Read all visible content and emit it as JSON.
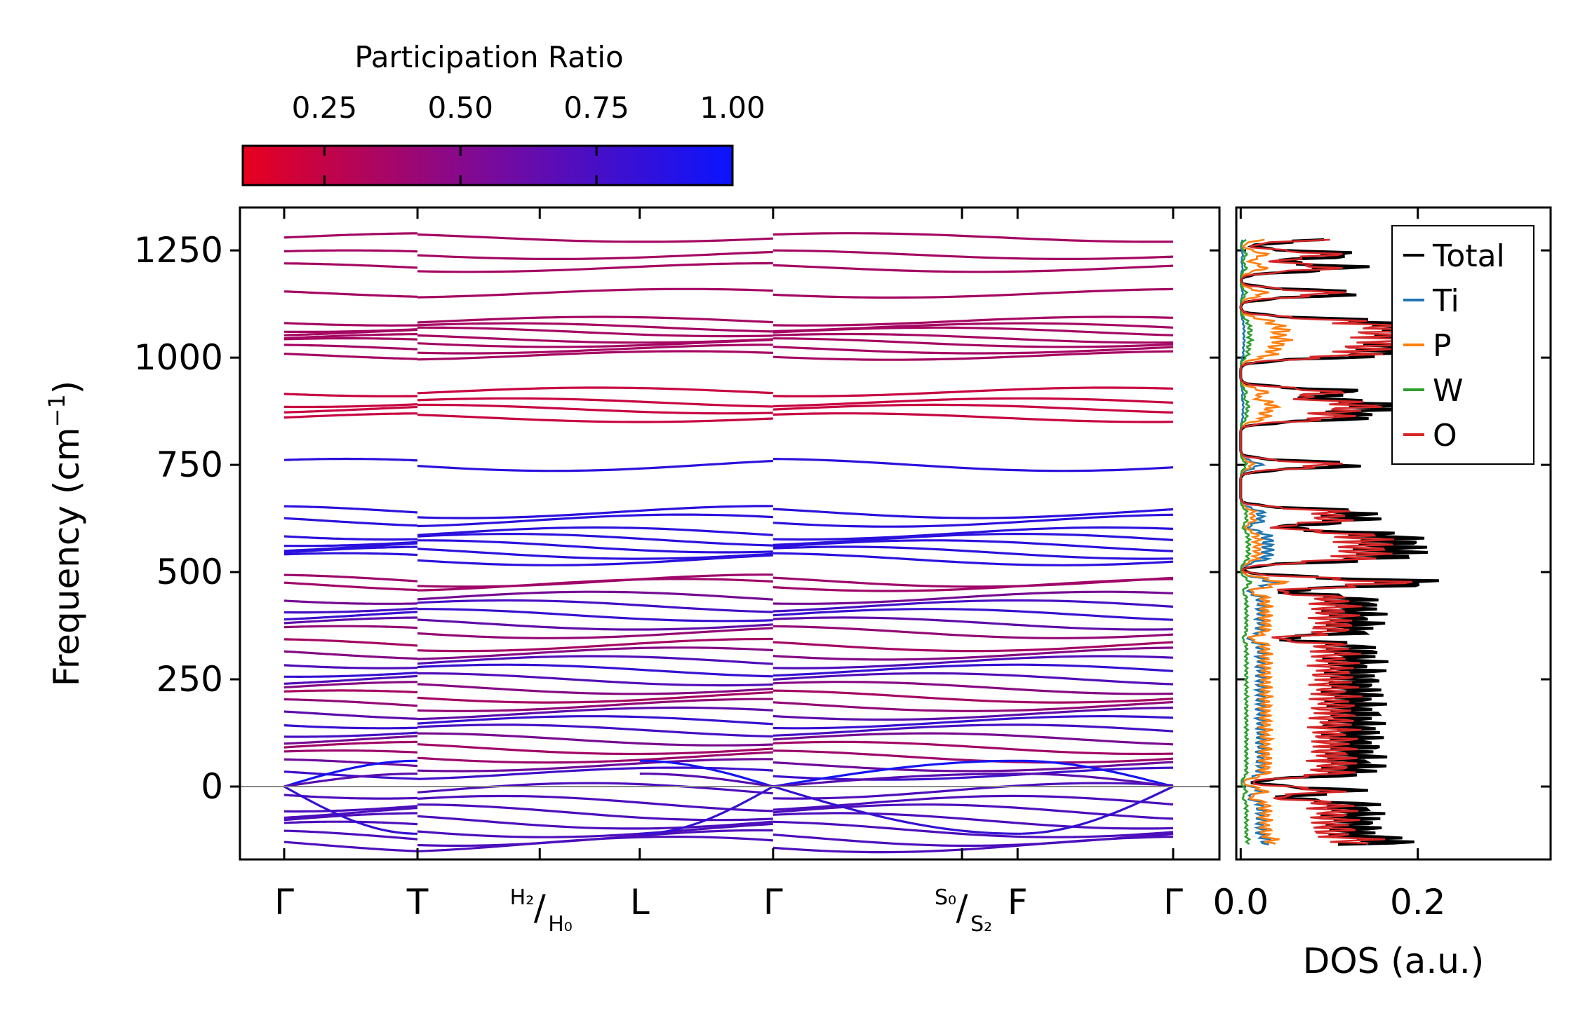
{
  "chart_data": [
    {
      "type": "line",
      "name": "phonon-band-structure",
      "ylabel": "Frequency (cm",
      "ylabel_sup": "−1",
      "ylabel_close": ")",
      "ylim": [
        -170,
        1350
      ],
      "yticks": [
        0,
        250,
        500,
        750,
        1000,
        1250
      ],
      "ytick_labels": [
        "0",
        "250",
        "500",
        "750",
        "1000",
        "1250"
      ],
      "path_segments": [
        [
          0,
          0.6
        ],
        [
          0.6,
          2.2
        ],
        [
          2.2,
          4.0
        ]
      ],
      "hsym_points": [
        {
          "pos": 0.0,
          "label": "Γ"
        },
        {
          "pos": 0.6,
          "label": "T"
        },
        {
          "pos": 1.15,
          "label": "/",
          "pre_sup": "H₂",
          "post_sub": "H₀"
        },
        {
          "pos": 1.6,
          "label": "L"
        },
        {
          "pos": 2.2,
          "label": "Γ"
        },
        {
          "pos": 3.05,
          "label": "/",
          "pre_sup": "S₀",
          "post_sub": "S₂"
        },
        {
          "pos": 3.3,
          "label": "F"
        },
        {
          "pos": 4.0,
          "label": "Γ"
        }
      ],
      "band_levels": [
        1280,
        1240,
        1210,
        1150,
        1085,
        1070,
        1060,
        1045,
        1035,
        1020,
        1005,
        920,
        895,
        880,
        860,
        750,
        640,
        620,
        590,
        575,
        560,
        545,
        530,
        480,
        470,
        440,
        420,
        400,
        380,
        360,
        330,
        310,
        290,
        270,
        250,
        230,
        210,
        190,
        170,
        150,
        130,
        110,
        90,
        70,
        50,
        30,
        -10,
        -40,
        -60,
        -80,
        -100,
        -120,
        -135
      ],
      "colorbar": {
        "title": "Participation Ratio",
        "ticks": [
          0.25,
          0.5,
          0.75,
          1.0
        ],
        "tick_labels": [
          "0.25",
          "0.50",
          "0.75",
          "1.00"
        ],
        "range": [
          0.1,
          1.0
        ],
        "color_low": "#e8001e",
        "color_high": "#0a14ff"
      }
    },
    {
      "type": "line",
      "name": "phonon-dos",
      "xlabel": "DOS (a.u.)",
      "xlim": [
        -0.005,
        0.35
      ],
      "xticks": [
        0.0,
        0.2
      ],
      "xtick_labels": [
        "0.0",
        "0.2"
      ],
      "series": [
        {
          "name": "Total",
          "color": "#000000"
        },
        {
          "name": "Ti",
          "color": "#1f77b4"
        },
        {
          "name": "P",
          "color": "#ff7f0e"
        },
        {
          "name": "W",
          "color": "#2ca02c"
        },
        {
          "name": "O",
          "color": "#d62728"
        }
      ]
    }
  ]
}
